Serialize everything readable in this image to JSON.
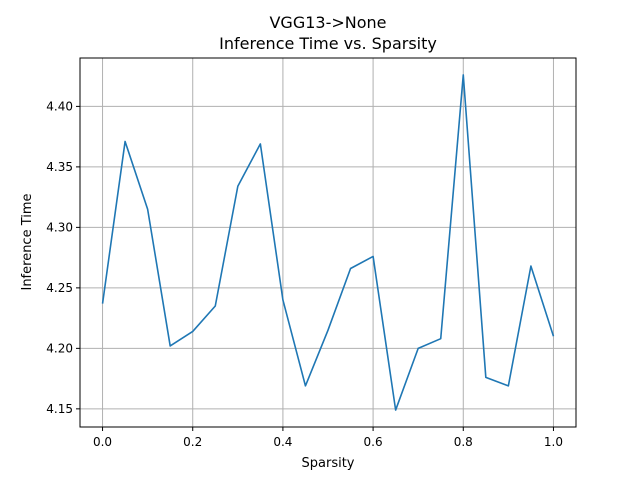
{
  "chart_data": {
    "type": "line",
    "title": "VGG13->None",
    "subtitle": "Inference Time vs. Sparsity",
    "xlabel": "Sparsity",
    "ylabel": "Inference Time",
    "xlim": [
      -0.05,
      1.05
    ],
    "ylim": [
      4.135,
      4.44
    ],
    "xticks": [
      0.0,
      0.2,
      0.4,
      0.6,
      0.8,
      1.0
    ],
    "xtick_labels": [
      "0.0",
      "0.2",
      "0.4",
      "0.6",
      "0.8",
      "1.0"
    ],
    "yticks": [
      4.15,
      4.2,
      4.25,
      4.3,
      4.35,
      4.4
    ],
    "ytick_labels": [
      "4.15",
      "4.20",
      "4.25",
      "4.30",
      "4.35",
      "4.40"
    ],
    "grid": true,
    "series": [
      {
        "color": "#1f77b4",
        "x": [
          0.0,
          0.05,
          0.1,
          0.15,
          0.2,
          0.25,
          0.3,
          0.35,
          0.4,
          0.45,
          0.5,
          0.55,
          0.6,
          0.65,
          0.7,
          0.75,
          0.8,
          0.85,
          0.9,
          0.95,
          1.0
        ],
        "values": [
          4.237,
          4.371,
          4.315,
          4.202,
          4.214,
          4.235,
          4.334,
          4.369,
          4.24,
          4.169,
          4.215,
          4.266,
          4.276,
          4.149,
          4.2,
          4.208,
          4.426,
          4.176,
          4.169,
          4.268,
          4.21
        ]
      }
    ]
  }
}
